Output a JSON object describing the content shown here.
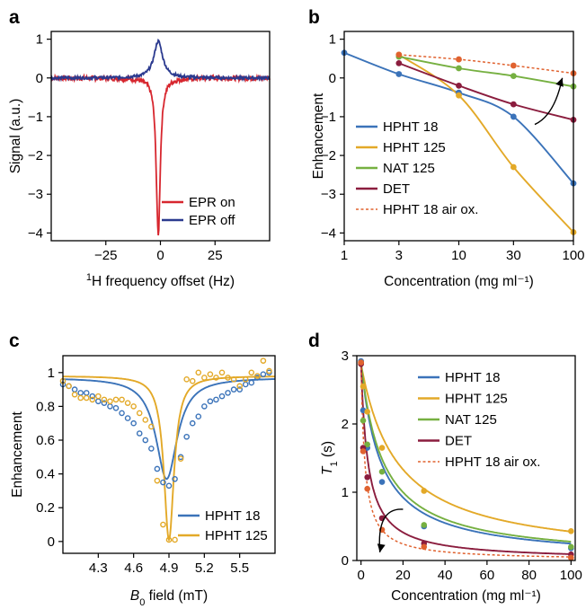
{
  "panels": [
    {
      "id": "a",
      "label": "a"
    },
    {
      "id": "b",
      "label": "b"
    },
    {
      "id": "c",
      "label": "c"
    },
    {
      "id": "d",
      "label": "d"
    }
  ],
  "colors": {
    "red": "#d7262e",
    "navy": "#2b3a8f",
    "blue": "#3b73b9",
    "gold": "#e3a928",
    "green": "#76b041",
    "maroon": "#8b1d3e",
    "orange": "#e0622f"
  },
  "chart_data": [
    {
      "panel": "a",
      "type": "line",
      "xlabel_sup": "1",
      "xlabel": "H frequency offset (Hz)",
      "ylabel": "Signal (a.u.)",
      "xlim": [
        -50,
        50
      ],
      "ylim": [
        -4.2,
        1.2
      ],
      "xticks": [
        -25,
        0,
        25
      ],
      "xtick_labels": [
        "−25",
        "0",
        "25"
      ],
      "yticks": [
        1,
        0,
        -1,
        -2,
        -3,
        -4
      ],
      "ytick_labels": [
        "1",
        "0",
        "−1",
        "−2",
        "−3",
        "−4"
      ],
      "legend_position": "bottom-right",
      "series": [
        {
          "name": "EPR on",
          "color": "red",
          "type": "lorentzian",
          "center": -1,
          "amplitude": -4.08,
          "width": 1.1
        },
        {
          "name": "EPR off",
          "color": "navy",
          "type": "lorentzian",
          "center": -1,
          "amplitude": 0.95,
          "width": 2.4
        }
      ]
    },
    {
      "panel": "b",
      "type": "line",
      "xscale": "log",
      "xlabel": "Concentration (mg ml⁻¹)",
      "ylabel": "Enhancement",
      "xlim": [
        1,
        100
      ],
      "ylim": [
        -4.2,
        1.2
      ],
      "xticks": [
        1,
        3,
        10,
        30,
        100
      ],
      "xtick_labels": [
        "1",
        "3",
        "10",
        "30",
        "100"
      ],
      "yticks": [
        1,
        0,
        -1,
        -2,
        -3,
        -4
      ],
      "ytick_labels": [
        "1",
        "0",
        "−1",
        "−2",
        "−3",
        "−4"
      ],
      "legend_position": "bottom-left",
      "series": [
        {
          "name": "HPHT 18",
          "color": "blue",
          "x": [
            1,
            3,
            10,
            30,
            100
          ],
          "y": [
            0.65,
            0.1,
            -0.38,
            -1.0,
            -2.72
          ]
        },
        {
          "name": "HPHT 125",
          "color": "gold",
          "x": [
            3,
            10,
            30,
            100
          ],
          "y": [
            0.6,
            -0.45,
            -2.3,
            -3.98
          ]
        },
        {
          "name": "NAT 125",
          "color": "green",
          "x": [
            3,
            10,
            30,
            100
          ],
          "y": [
            0.55,
            0.25,
            0.05,
            -0.22
          ]
        },
        {
          "name": "DET",
          "color": "maroon",
          "x": [
            3,
            10,
            30,
            100
          ],
          "y": [
            0.38,
            -0.2,
            -0.68,
            -1.08
          ]
        },
        {
          "name": "HPHT 18 air ox.",
          "color": "orange",
          "dashed": true,
          "x": [
            3,
            10,
            30,
            100
          ],
          "y": [
            0.6,
            0.48,
            0.32,
            0.12
          ]
        }
      ],
      "annotation": "arrow from DET towards HPHT 18 air ox."
    },
    {
      "panel": "c",
      "type": "scatter",
      "xlabel_main": "B",
      "xlabel_sub": "0",
      "xlabel_rest": " field (mT)",
      "ylabel": "Enhancement",
      "xlim": [
        4.0,
        5.8
      ],
      "ylim": [
        -0.07,
        1.1
      ],
      "xticks": [
        4.3,
        4.6,
        4.9,
        5.2,
        5.5
      ],
      "xtick_labels": [
        "4.3",
        "4.6",
        "4.9",
        "5.2",
        "5.5"
      ],
      "yticks": [
        0,
        0.2,
        0.4,
        0.6,
        0.8,
        1
      ],
      "ytick_labels": [
        "0",
        "0.2",
        "0.4",
        "0.6",
        "0.8",
        "1"
      ],
      "legend_position": "bottom-right",
      "series": [
        {
          "name": "HPHT 18",
          "color": "blue",
          "x": [
            4.0,
            4.05,
            4.1,
            4.15,
            4.2,
            4.25,
            4.3,
            4.35,
            4.4,
            4.45,
            4.5,
            4.55,
            4.6,
            4.65,
            4.7,
            4.75,
            4.8,
            4.85,
            4.9,
            4.95,
            5.0,
            5.05,
            5.1,
            5.15,
            5.2,
            5.25,
            5.3,
            5.35,
            5.4,
            5.45,
            5.5,
            5.55,
            5.6,
            5.65,
            5.7,
            5.75
          ],
          "y": [
            0.93,
            0.92,
            0.9,
            0.88,
            0.88,
            0.86,
            0.83,
            0.82,
            0.8,
            0.79,
            0.76,
            0.73,
            0.7,
            0.64,
            0.6,
            0.55,
            0.43,
            0.35,
            0.33,
            0.37,
            0.5,
            0.62,
            0.7,
            0.74,
            0.8,
            0.83,
            0.84,
            0.86,
            0.88,
            0.9,
            0.9,
            0.93,
            0.94,
            0.97,
            0.99,
            1.0
          ],
          "fit": {
            "type": "lorentzian_dip",
            "center": 4.88,
            "width": 0.11,
            "depth": 0.6,
            "baseline": [
              0.97,
              0.0
            ]
          }
        },
        {
          "name": "HPHT 125",
          "color": "gold",
          "x": [
            4.0,
            4.05,
            4.1,
            4.15,
            4.2,
            4.25,
            4.3,
            4.35,
            4.4,
            4.45,
            4.5,
            4.55,
            4.6,
            4.65,
            4.7,
            4.75,
            4.8,
            4.85,
            4.9,
            4.95,
            5.0,
            5.05,
            5.1,
            5.15,
            5.2,
            5.25,
            5.3,
            5.35,
            5.4,
            5.45,
            5.5,
            5.55,
            5.6,
            5.65,
            5.7,
            5.75
          ],
          "y": [
            0.95,
            0.92,
            0.87,
            0.85,
            0.85,
            0.84,
            0.86,
            0.84,
            0.83,
            0.84,
            0.84,
            0.82,
            0.8,
            0.76,
            0.72,
            0.68,
            0.36,
            0.1,
            0.01,
            0.01,
            0.49,
            0.96,
            0.95,
            1.0,
            0.97,
            0.99,
            0.97,
            1.0,
            0.97,
            0.96,
            0.92,
            0.96,
            1.0,
            0.98,
            1.07,
            1.01
          ],
          "fit": {
            "type": "lorentzian_dip",
            "center": 4.9,
            "width": 0.052,
            "depth": 0.97,
            "baseline": [
              0.98,
              0.0
            ]
          }
        }
      ]
    },
    {
      "panel": "d",
      "type": "scatter",
      "xlabel": "Concentration (mg ml⁻¹)",
      "ylabel_main": "T",
      "ylabel_sub": "1",
      "ylabel_rest": " (s)",
      "xlim": [
        -2,
        102
      ],
      "ylim": [
        0,
        3
      ],
      "xticks": [
        0,
        20,
        40,
        60,
        80,
        100
      ],
      "xtick_labels": [
        "0",
        "20",
        "40",
        "60",
        "80",
        "100"
      ],
      "yticks": [
        0,
        1,
        2,
        3
      ],
      "ytick_labels": [
        "0",
        "1",
        "2",
        "3"
      ],
      "legend_position": "top-right",
      "series": [
        {
          "name": "HPHT 18",
          "color": "blue",
          "x": [
            0,
            1,
            3,
            10,
            30,
            100
          ],
          "y": [
            2.92,
            2.2,
            1.65,
            1.15,
            0.5,
            0.18
          ],
          "fit_k": 0.108
        },
        {
          "name": "HPHT 125",
          "color": "gold",
          "x": [
            0,
            1,
            3,
            10,
            30,
            100
          ],
          "y": [
            2.88,
            2.55,
            2.18,
            1.65,
            1.02,
            0.43
          ],
          "fit_k": 0.058
        },
        {
          "name": "NAT 125",
          "color": "green",
          "x": [
            0,
            1,
            3,
            10,
            30,
            100
          ],
          "y": [
            2.9,
            2.05,
            1.7,
            1.3,
            0.52,
            0.2
          ],
          "fit_k": 0.095
        },
        {
          "name": "DET",
          "color": "maroon",
          "x": [
            0,
            1,
            3,
            10,
            30,
            100
          ],
          "y": [
            2.88,
            1.65,
            1.22,
            0.62,
            0.25,
            0.09
          ],
          "fit_k": 0.3
        },
        {
          "name": "HPHT 18 air ox.",
          "color": "orange",
          "dashed": true,
          "x": [
            0,
            1,
            3,
            10,
            30,
            100
          ],
          "y": [
            2.9,
            1.6,
            1.05,
            0.45,
            0.2,
            0.04
          ],
          "fit_k": 0.55
        }
      ],
      "annotation": "arrow from HPHT 18 curve towards air ox. curve"
    }
  ]
}
